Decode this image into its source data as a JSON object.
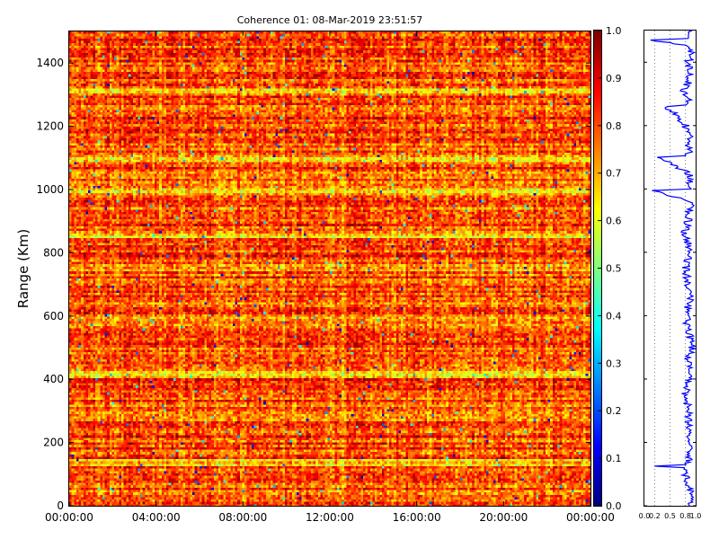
{
  "chart_data": [
    {
      "type": "heatmap",
      "title": "Coherence 01: 08-Mar-2019 23:51:57",
      "xlabel": "",
      "ylabel": "Range (Km)",
      "x_ticks": [
        "00:00:00",
        "04:00:00",
        "08:00:00",
        "12:00:00",
        "16:00:00",
        "20:00:00",
        "00:00:00"
      ],
      "y_ticks": [
        0,
        200,
        400,
        600,
        800,
        1000,
        1200,
        1400
      ],
      "xlim_hours": [
        0,
        24
      ],
      "ylim": [
        0,
        1500
      ],
      "colormap": "jet",
      "colorbar": {
        "range": [
          0.0,
          1.0
        ],
        "ticks": [
          "0.0",
          "0.1",
          "0.2",
          "0.3",
          "0.4",
          "0.5",
          "0.6",
          "0.7",
          "0.8",
          "0.9",
          "1.0"
        ]
      },
      "grid": false,
      "legend": "none",
      "summary": {
        "dominant_value_range": [
          0.75,
          1.0
        ],
        "low_coherence_bands_km": [
          145,
          420,
          600,
          760,
          860,
          1000,
          1100,
          1310
        ],
        "min_value_approx": 0.05
      }
    },
    {
      "type": "line",
      "xlim": [
        0.0,
        1.0
      ],
      "x_ticks": [
        "0.0",
        "0.2",
        "0.5",
        "0.8",
        "1.0"
      ],
      "ylim": [
        0,
        1500
      ],
      "series_color": "#0000ff",
      "reference_lines_x": [
        0.2,
        0.5,
        0.8
      ],
      "profile": [
        {
          "range": 0,
          "value": 0.92
        },
        {
          "range": 50,
          "value": 0.88
        },
        {
          "range": 120,
          "value": 0.78
        },
        {
          "range": 125,
          "value": 0.2
        },
        {
          "range": 130,
          "value": 0.86
        },
        {
          "range": 200,
          "value": 0.9
        },
        {
          "range": 250,
          "value": 0.85
        },
        {
          "range": 300,
          "value": 0.88
        },
        {
          "range": 350,
          "value": 0.78
        },
        {
          "range": 400,
          "value": 0.9
        },
        {
          "range": 460,
          "value": 0.85
        },
        {
          "range": 500,
          "value": 0.93
        },
        {
          "range": 560,
          "value": 0.86
        },
        {
          "range": 600,
          "value": 0.8
        },
        {
          "range": 650,
          "value": 0.9
        },
        {
          "range": 700,
          "value": 0.86
        },
        {
          "range": 760,
          "value": 0.8
        },
        {
          "range": 800,
          "value": 0.92
        },
        {
          "range": 860,
          "value": 0.78
        },
        {
          "range": 920,
          "value": 0.88
        },
        {
          "range": 960,
          "value": 0.9
        },
        {
          "range": 995,
          "value": 0.15
        },
        {
          "range": 1000,
          "value": 0.9
        },
        {
          "range": 1050,
          "value": 0.86
        },
        {
          "range": 1100,
          "value": 0.25
        },
        {
          "range": 1105,
          "value": 0.85
        },
        {
          "range": 1150,
          "value": 0.9
        },
        {
          "range": 1200,
          "value": 0.8
        },
        {
          "range": 1260,
          "value": 0.45
        },
        {
          "range": 1265,
          "value": 0.88
        },
        {
          "range": 1310,
          "value": 0.78
        },
        {
          "range": 1350,
          "value": 0.9
        },
        {
          "range": 1400,
          "value": 0.86
        },
        {
          "range": 1450,
          "value": 0.92
        },
        {
          "range": 1470,
          "value": 0.12
        },
        {
          "range": 1475,
          "value": 0.9
        },
        {
          "range": 1500,
          "value": 0.93
        }
      ]
    }
  ]
}
